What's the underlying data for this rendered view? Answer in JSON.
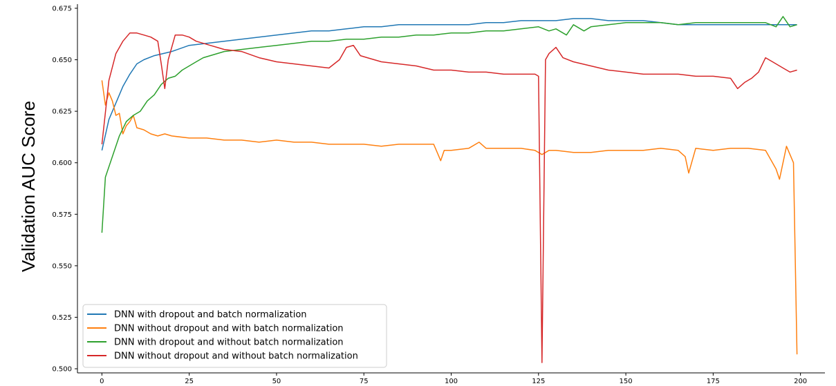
{
  "chart_data": {
    "type": "line",
    "title": "",
    "xlabel": "",
    "ylabel": "Validation AUC Score",
    "xlim": [
      -7,
      207
    ],
    "ylim": [
      0.498,
      0.677
    ],
    "xticks": [
      0,
      25,
      50,
      75,
      100,
      125,
      150,
      175,
      200
    ],
    "yticks": [
      0.5,
      0.525,
      0.55,
      0.575,
      0.6,
      0.625,
      0.65,
      0.675
    ],
    "xtick_labels": [
      "0",
      "25",
      "50",
      "75",
      "100",
      "125",
      "150",
      "175",
      "200"
    ],
    "ytick_labels": [
      "0.500",
      "0.525",
      "0.550",
      "0.575",
      "0.600",
      "0.625",
      "0.650",
      "0.675"
    ],
    "grid": false,
    "legend_position": "lower-left",
    "series": [
      {
        "name": "DNN with dropout and batch normalization",
        "color": "#1f77b4",
        "points": [
          [
            0,
            0.606
          ],
          [
            2,
            0.621
          ],
          [
            4,
            0.629
          ],
          [
            6,
            0.637
          ],
          [
            8,
            0.643
          ],
          [
            10,
            0.648
          ],
          [
            12,
            0.65
          ],
          [
            15,
            0.652
          ],
          [
            20,
            0.654
          ],
          [
            25,
            0.657
          ],
          [
            30,
            0.658
          ],
          [
            35,
            0.659
          ],
          [
            40,
            0.66
          ],
          [
            45,
            0.661
          ],
          [
            50,
            0.662
          ],
          [
            55,
            0.663
          ],
          [
            60,
            0.664
          ],
          [
            65,
            0.664
          ],
          [
            70,
            0.665
          ],
          [
            75,
            0.666
          ],
          [
            80,
            0.666
          ],
          [
            85,
            0.667
          ],
          [
            90,
            0.667
          ],
          [
            95,
            0.667
          ],
          [
            100,
            0.667
          ],
          [
            105,
            0.667
          ],
          [
            110,
            0.668
          ],
          [
            115,
            0.668
          ],
          [
            120,
            0.669
          ],
          [
            125,
            0.669
          ],
          [
            130,
            0.669
          ],
          [
            135,
            0.67
          ],
          [
            140,
            0.67
          ],
          [
            145,
            0.669
          ],
          [
            150,
            0.669
          ],
          [
            155,
            0.669
          ],
          [
            160,
            0.668
          ],
          [
            165,
            0.667
          ],
          [
            170,
            0.667
          ],
          [
            175,
            0.667
          ],
          [
            180,
            0.667
          ],
          [
            185,
            0.667
          ],
          [
            190,
            0.667
          ],
          [
            195,
            0.667
          ],
          [
            199,
            0.667
          ]
        ]
      },
      {
        "name": "DNN without dropout and with batch normalization",
        "color": "#ff7f0e",
        "points": [
          [
            0,
            0.64
          ],
          [
            1,
            0.628
          ],
          [
            2,
            0.634
          ],
          [
            3,
            0.63
          ],
          [
            4,
            0.623
          ],
          [
            5,
            0.624
          ],
          [
            6,
            0.614
          ],
          [
            7,
            0.618
          ],
          [
            8,
            0.62
          ],
          [
            9,
            0.623
          ],
          [
            10,
            0.617
          ],
          [
            12,
            0.616
          ],
          [
            14,
            0.614
          ],
          [
            16,
            0.613
          ],
          [
            18,
            0.614
          ],
          [
            20,
            0.613
          ],
          [
            25,
            0.612
          ],
          [
            30,
            0.612
          ],
          [
            35,
            0.611
          ],
          [
            40,
            0.611
          ],
          [
            45,
            0.61
          ],
          [
            50,
            0.611
          ],
          [
            55,
            0.61
          ],
          [
            60,
            0.61
          ],
          [
            65,
            0.609
          ],
          [
            70,
            0.609
          ],
          [
            75,
            0.609
          ],
          [
            80,
            0.608
          ],
          [
            85,
            0.609
          ],
          [
            90,
            0.609
          ],
          [
            95,
            0.609
          ],
          [
            96,
            0.605
          ],
          [
            97,
            0.601
          ],
          [
            98,
            0.606
          ],
          [
            100,
            0.606
          ],
          [
            105,
            0.607
          ],
          [
            108,
            0.61
          ],
          [
            110,
            0.607
          ],
          [
            115,
            0.607
          ],
          [
            120,
            0.607
          ],
          [
            124,
            0.606
          ],
          [
            126,
            0.604
          ],
          [
            128,
            0.606
          ],
          [
            130,
            0.606
          ],
          [
            135,
            0.605
          ],
          [
            140,
            0.605
          ],
          [
            145,
            0.606
          ],
          [
            150,
            0.606
          ],
          [
            155,
            0.606
          ],
          [
            160,
            0.607
          ],
          [
            165,
            0.606
          ],
          [
            167,
            0.603
          ],
          [
            168,
            0.595
          ],
          [
            170,
            0.607
          ],
          [
            175,
            0.606
          ],
          [
            180,
            0.607
          ],
          [
            185,
            0.607
          ],
          [
            190,
            0.606
          ],
          [
            193,
            0.597
          ],
          [
            194,
            0.592
          ],
          [
            196,
            0.608
          ],
          [
            198,
            0.6
          ],
          [
            199,
            0.507
          ]
        ]
      },
      {
        "name": "DNN with dropout and without batch normalization",
        "color": "#2ca02c",
        "points": [
          [
            0,
            0.566
          ],
          [
            1,
            0.593
          ],
          [
            3,
            0.603
          ],
          [
            5,
            0.613
          ],
          [
            7,
            0.62
          ],
          [
            9,
            0.623
          ],
          [
            11,
            0.625
          ],
          [
            13,
            0.63
          ],
          [
            15,
            0.633
          ],
          [
            17,
            0.638
          ],
          [
            19,
            0.641
          ],
          [
            21,
            0.642
          ],
          [
            23,
            0.645
          ],
          [
            25,
            0.647
          ],
          [
            27,
            0.649
          ],
          [
            29,
            0.651
          ],
          [
            31,
            0.652
          ],
          [
            33,
            0.653
          ],
          [
            35,
            0.654
          ],
          [
            40,
            0.655
          ],
          [
            45,
            0.656
          ],
          [
            50,
            0.657
          ],
          [
            55,
            0.658
          ],
          [
            60,
            0.659
          ],
          [
            65,
            0.659
          ],
          [
            70,
            0.66
          ],
          [
            75,
            0.66
          ],
          [
            80,
            0.661
          ],
          [
            85,
            0.661
          ],
          [
            90,
            0.662
          ],
          [
            95,
            0.662
          ],
          [
            100,
            0.663
          ],
          [
            105,
            0.663
          ],
          [
            110,
            0.664
          ],
          [
            115,
            0.664
          ],
          [
            120,
            0.665
          ],
          [
            125,
            0.666
          ],
          [
            128,
            0.664
          ],
          [
            130,
            0.665
          ],
          [
            133,
            0.662
          ],
          [
            135,
            0.667
          ],
          [
            138,
            0.664
          ],
          [
            140,
            0.666
          ],
          [
            145,
            0.667
          ],
          [
            150,
            0.668
          ],
          [
            155,
            0.668
          ],
          [
            160,
            0.668
          ],
          [
            165,
            0.667
          ],
          [
            170,
            0.668
          ],
          [
            175,
            0.668
          ],
          [
            180,
            0.668
          ],
          [
            185,
            0.668
          ],
          [
            190,
            0.668
          ],
          [
            193,
            0.666
          ],
          [
            195,
            0.671
          ],
          [
            197,
            0.666
          ],
          [
            199,
            0.667
          ]
        ]
      },
      {
        "name": "DNN without dropout and without batch normalization",
        "color": "#d62728",
        "points": [
          [
            0,
            0.609
          ],
          [
            2,
            0.64
          ],
          [
            4,
            0.653
          ],
          [
            6,
            0.659
          ],
          [
            8,
            0.663
          ],
          [
            10,
            0.663
          ],
          [
            12,
            0.662
          ],
          [
            14,
            0.661
          ],
          [
            16,
            0.659
          ],
          [
            17,
            0.648
          ],
          [
            18,
            0.636
          ],
          [
            19,
            0.65
          ],
          [
            21,
            0.662
          ],
          [
            23,
            0.662
          ],
          [
            25,
            0.661
          ],
          [
            27,
            0.659
          ],
          [
            29,
            0.658
          ],
          [
            31,
            0.657
          ],
          [
            33,
            0.656
          ],
          [
            35,
            0.655
          ],
          [
            40,
            0.654
          ],
          [
            45,
            0.651
          ],
          [
            50,
            0.649
          ],
          [
            55,
            0.648
          ],
          [
            60,
            0.647
          ],
          [
            65,
            0.646
          ],
          [
            68,
            0.65
          ],
          [
            70,
            0.656
          ],
          [
            72,
            0.657
          ],
          [
            74,
            0.652
          ],
          [
            76,
            0.651
          ],
          [
            80,
            0.649
          ],
          [
            85,
            0.648
          ],
          [
            90,
            0.647
          ],
          [
            95,
            0.645
          ],
          [
            100,
            0.645
          ],
          [
            105,
            0.644
          ],
          [
            110,
            0.644
          ],
          [
            115,
            0.643
          ],
          [
            120,
            0.643
          ],
          [
            124,
            0.643
          ],
          [
            125,
            0.642
          ],
          [
            126,
            0.503
          ],
          [
            127,
            0.65
          ],
          [
            128,
            0.653
          ],
          [
            130,
            0.656
          ],
          [
            132,
            0.651
          ],
          [
            135,
            0.649
          ],
          [
            140,
            0.647
          ],
          [
            145,
            0.645
          ],
          [
            150,
            0.644
          ],
          [
            155,
            0.643
          ],
          [
            160,
            0.643
          ],
          [
            165,
            0.643
          ],
          [
            170,
            0.642
          ],
          [
            175,
            0.642
          ],
          [
            180,
            0.641
          ],
          [
            182,
            0.636
          ],
          [
            184,
            0.639
          ],
          [
            186,
            0.641
          ],
          [
            188,
            0.644
          ],
          [
            190,
            0.651
          ],
          [
            192,
            0.649
          ],
          [
            195,
            0.646
          ],
          [
            197,
            0.644
          ],
          [
            199,
            0.645
          ]
        ]
      }
    ]
  }
}
